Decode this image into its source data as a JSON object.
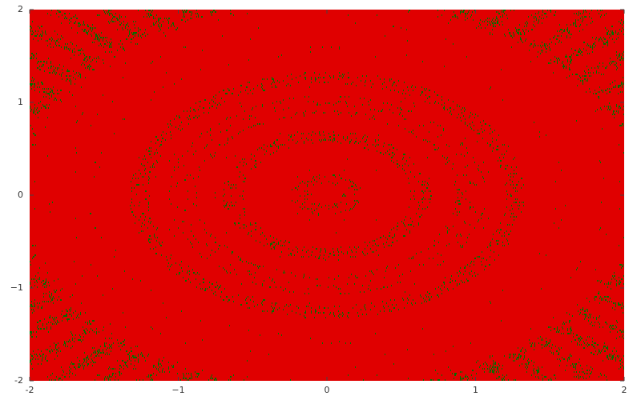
{
  "chart_data": {
    "type": "newton-fractal",
    "colors": [
      "#e00000",
      "#0000e6",
      "#007000"
    ],
    "xlim": [
      -2,
      2
    ],
    "ylim": [
      -2,
      2
    ],
    "xticks": [
      -2,
      {
        "value": -1,
        "label": "−1"
      },
      0,
      1,
      2
    ],
    "yticks": [
      -2,
      {
        "value": -1,
        "label": "−1"
      },
      0,
      1,
      2
    ]
  }
}
